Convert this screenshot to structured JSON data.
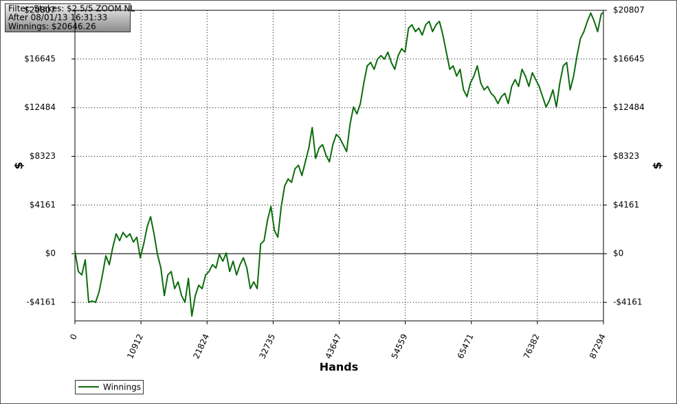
{
  "chart_data": {
    "type": "line",
    "annotations": [
      "Filter: Stakes: $2.5/5 ZOOM NL",
      "After 08/01/13 16:31:33",
      "Winnings: $20646.26"
    ],
    "xlabel": "Hands",
    "ylabel": "$",
    "x": [
      0,
      568,
      1136,
      1704,
      2272,
      2840,
      3408,
      3976,
      4544,
      5112,
      5680,
      6248,
      6816,
      7384,
      7952,
      8520,
      9088,
      9656,
      10224,
      10792,
      11360,
      11928,
      12496,
      13064,
      13632,
      14200,
      14768,
      15336,
      15904,
      16472,
      17040,
      17608,
      18176,
      18744,
      19312,
      19880,
      20448,
      21016,
      21584,
      22152,
      22720,
      23288,
      23856,
      24424,
      24992,
      25560,
      26128,
      26696,
      27264,
      27832,
      28400,
      28968,
      29536,
      30104,
      30672,
      31240,
      31808,
      32376,
      32944,
      33512,
      34080,
      34648,
      35216,
      35784,
      36352,
      36920,
      37488,
      38056,
      38624,
      39192,
      39760,
      40328,
      40896,
      41464,
      42032,
      42600,
      43168,
      43736,
      44304,
      44872,
      45440,
      46008,
      46576,
      47144,
      47712,
      48280,
      48848,
      49416,
      49984,
      50552,
      51120,
      51688,
      52256,
      52824,
      53392,
      53960,
      54528,
      55096,
      55664,
      56232,
      56800,
      57368,
      57936,
      58504,
      59072,
      59640,
      60208,
      60776,
      61344,
      61912,
      62480,
      63048,
      63616,
      64184,
      64752,
      65320,
      65888,
      66456,
      67024,
      67592,
      68160,
      68728,
      69296,
      69864,
      70432,
      71000,
      71568,
      72136,
      72704,
      73272,
      73840,
      74408,
      74976,
      75544,
      76112,
      76680,
      77248,
      77816,
      78384,
      78952,
      79520,
      80088,
      80656,
      81224,
      81792,
      82360,
      82928,
      83496,
      84064,
      84632,
      85200,
      85768,
      86336,
      86904,
      87294
    ],
    "series": [
      {
        "name": "Winnings",
        "color": "#0b6b0b",
        "values": [
          234,
          -1524,
          -1817,
          -527,
          -4161,
          -4043,
          -4161,
          -3282,
          -1817,
          -176,
          -938,
          527,
          1699,
          1113,
          1817,
          1406,
          1699,
          996,
          1406,
          -352,
          820,
          2285,
          3164,
          1699,
          -59,
          -1231,
          -3575,
          -1817,
          -1524,
          -2989,
          -2403,
          -3575,
          -4161,
          -2110,
          -5333,
          -3575,
          -2696,
          -2989,
          -1817,
          -1524,
          -938,
          -1231,
          -59,
          -645,
          59,
          -1524,
          -645,
          -1817,
          -938,
          -352,
          -1231,
          -2989,
          -2403,
          -2989,
          820,
          1113,
          2871,
          4043,
          1992,
          1406,
          4043,
          5801,
          6387,
          6094,
          7266,
          7559,
          6680,
          7852,
          9024,
          10782,
          8145,
          9024,
          9317,
          8438,
          7852,
          9317,
          10196,
          9903,
          9317,
          8731,
          11075,
          12540,
          11954,
          12833,
          14591,
          16056,
          16349,
          15763,
          16642,
          16935,
          16642,
          17228,
          16349,
          15763,
          16935,
          17521,
          17228,
          19279,
          19572,
          18986,
          19279,
          18693,
          19572,
          19865,
          18986,
          19572,
          19865,
          18693,
          17228,
          15763,
          16056,
          15177,
          15763,
          14005,
          13419,
          14591,
          15177,
          16056,
          14591,
          14005,
          14298,
          13712,
          13419,
          12833,
          13419,
          13712,
          12833,
          14298,
          14884,
          14298,
          15763,
          15177,
          14298,
          15470,
          14884,
          14298,
          13419,
          12540,
          13126,
          14005,
          12540,
          14591,
          16056,
          16349,
          14005,
          15177,
          16935,
          18400,
          18986,
          19865,
          20569,
          19865,
          18986,
          20451,
          20646
        ]
      }
    ],
    "xlim": [
      0,
      87294
    ],
    "xticks": [
      0,
      10912,
      21824,
      32735,
      43647,
      54559,
      65471,
      76382,
      87294
    ],
    "ylim": [
      -5743,
      20807
    ],
    "yticks": [
      {
        "value": -4161,
        "label": "-$4161"
      },
      {
        "value": 0,
        "label": "$0"
      },
      {
        "value": 4161,
        "label": "$4161"
      },
      {
        "value": 8323,
        "label": "$8323"
      },
      {
        "value": 12484,
        "label": "$12484"
      },
      {
        "value": 16645,
        "label": "$16645"
      },
      {
        "value": 20807,
        "label": "$20807"
      }
    ],
    "grid": true
  }
}
